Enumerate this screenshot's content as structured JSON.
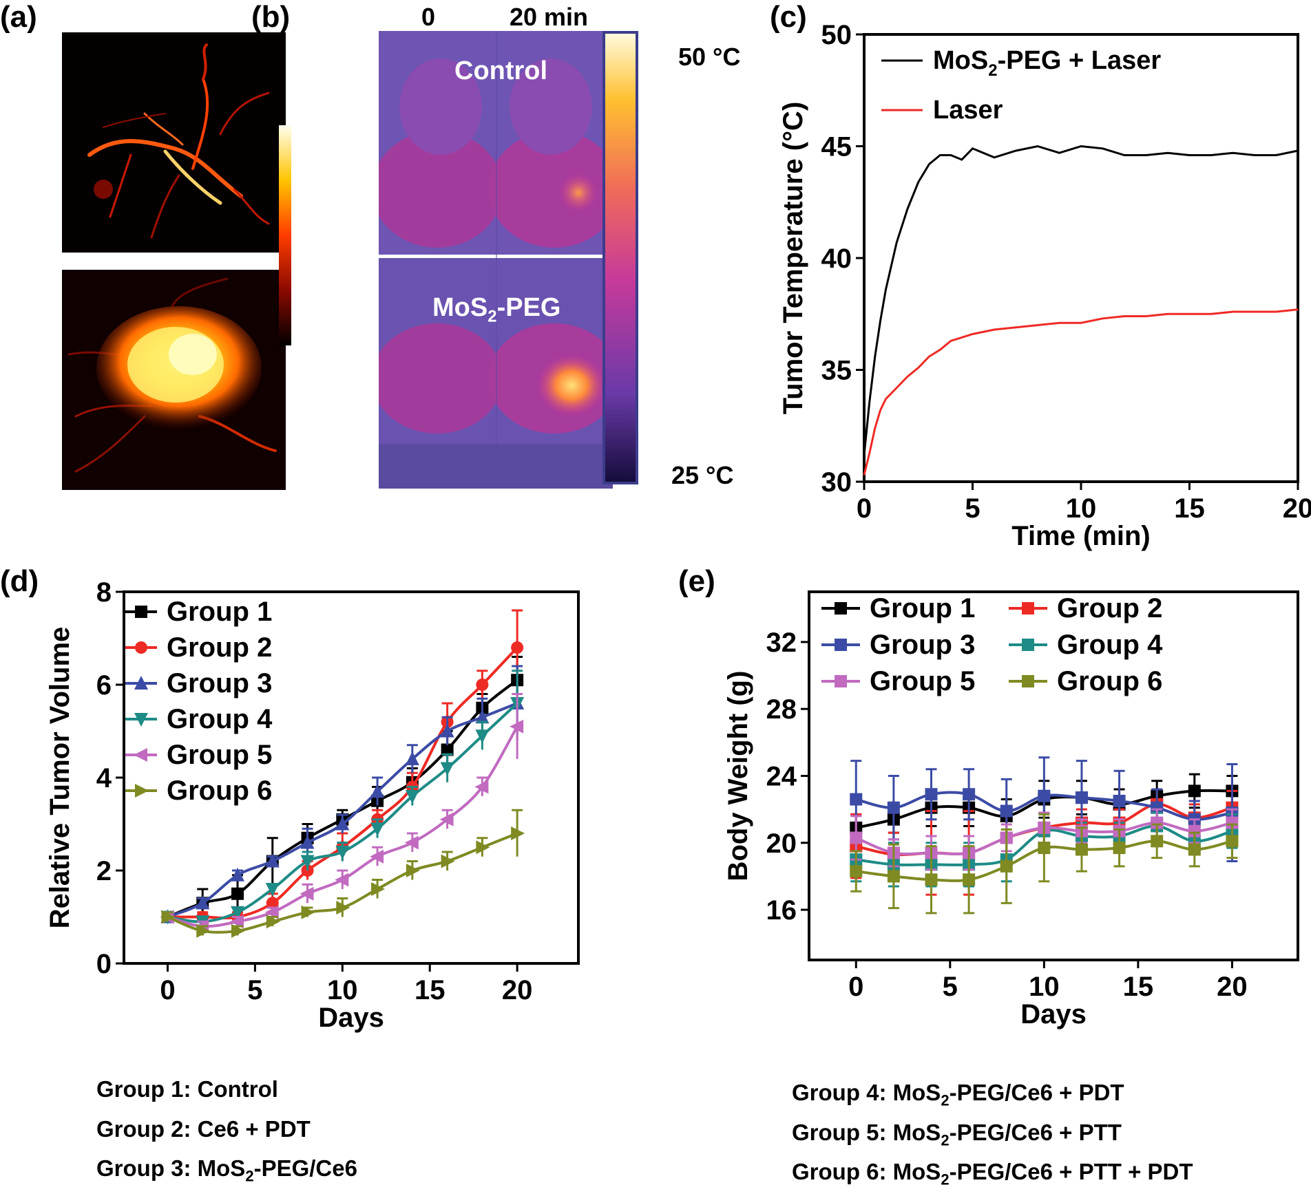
{
  "panel_labels": {
    "a": "(a)",
    "b": "(b)",
    "c": "(c)",
    "d": "(d)",
    "e": "(e)"
  },
  "panel_b": {
    "time_start": "0",
    "time_end": "20 min",
    "row1_label": "Control",
    "row2_label_main": "MoS",
    "row2_label_sub": "2",
    "row2_label_tail": "-PEG",
    "scale_max": "50 °C",
    "scale_min": "25 °C"
  },
  "colors": {
    "g1": "#000000",
    "g2": "#ee2a24",
    "g3": "#3b4ba5",
    "g4": "#1e8b86",
    "g5": "#c16ac0",
    "g6": "#7f8a22"
  },
  "chart_data": [
    {
      "id": "c",
      "type": "line",
      "xlabel": "Time (min)",
      "ylabel": "Tumor Temperature (°C)",
      "xlim": [
        0,
        20
      ],
      "ylim": [
        30,
        50
      ],
      "xticks": [
        0,
        5,
        10,
        15,
        20
      ],
      "yticks": [
        30,
        35,
        40,
        45,
        50
      ],
      "legend_placement": "top-left",
      "series": [
        {
          "name": "MoS2-PEG + Laser",
          "color": "#000000",
          "x": [
            0,
            0.25,
            0.5,
            0.75,
            1,
            1.5,
            2,
            2.5,
            3,
            3.5,
            4,
            4.5,
            5,
            6,
            7,
            8,
            9,
            10,
            11,
            12,
            13,
            14,
            15,
            16,
            17,
            18,
            19,
            20
          ],
          "y": [
            31.2,
            33.6,
            35.6,
            37.2,
            38.6,
            40.7,
            42.2,
            43.4,
            44.2,
            44.6,
            44.6,
            44.4,
            44.9,
            44.5,
            44.8,
            45.0,
            44.7,
            45.0,
            44.9,
            44.6,
            44.6,
            44.7,
            44.6,
            44.6,
            44.7,
            44.6,
            44.6,
            44.8
          ]
        },
        {
          "name": "Laser",
          "color": "#ee2a24",
          "x": [
            0,
            0.25,
            0.5,
            0.75,
            1,
            1.5,
            2,
            2.5,
            3,
            3.5,
            4,
            5,
            6,
            7,
            8,
            9,
            10,
            11,
            12,
            13,
            14,
            15,
            16,
            17,
            18,
            19,
            20
          ],
          "y": [
            30.3,
            31.3,
            32.4,
            33.2,
            33.7,
            34.2,
            34.7,
            35.1,
            35.6,
            35.9,
            36.3,
            36.6,
            36.8,
            36.9,
            37.0,
            37.1,
            37.1,
            37.3,
            37.4,
            37.4,
            37.5,
            37.5,
            37.5,
            37.6,
            37.6,
            37.6,
            37.7
          ]
        }
      ]
    },
    {
      "id": "d",
      "type": "line",
      "xlabel": "Days",
      "ylabel": "Relative Tumor Volume",
      "xlim": [
        -2.5,
        23.5
      ],
      "ylim": [
        0,
        8
      ],
      "xticks": [
        0,
        5,
        10,
        15,
        20
      ],
      "yticks": [
        0,
        2,
        4,
        6,
        8
      ],
      "legend_placement": "top-left",
      "x": [
        0,
        2,
        4,
        6,
        8,
        10,
        12,
        14,
        16,
        18,
        20
      ],
      "series": [
        {
          "name": "Group 1",
          "key": "g1",
          "marker": "square",
          "values": [
            1.0,
            1.3,
            1.5,
            2.2,
            2.7,
            3.1,
            3.5,
            3.9,
            4.6,
            5.5,
            6.1
          ],
          "errors": [
            0.1,
            0.3,
            0.4,
            0.5,
            0.3,
            0.2,
            0.3,
            0.3,
            0.4,
            0.3,
            0.5
          ]
        },
        {
          "name": "Group 2",
          "key": "g2",
          "marker": "circle",
          "values": [
            1.0,
            1.0,
            1.0,
            1.3,
            2.0,
            2.5,
            3.1,
            3.8,
            5.2,
            6.0,
            6.8
          ],
          "errors": [
            0.1,
            0.1,
            0.1,
            0.2,
            0.2,
            0.3,
            0.2,
            0.3,
            0.4,
            0.3,
            0.8
          ]
        },
        {
          "name": "Group 3",
          "key": "g3",
          "marker": "triangle-up",
          "values": [
            1.0,
            1.3,
            1.9,
            2.2,
            2.6,
            3.0,
            3.7,
            4.4,
            5.0,
            5.3,
            5.6
          ],
          "errors": [
            0.1,
            0.1,
            0.1,
            0.1,
            0.3,
            0.2,
            0.3,
            0.3,
            0.3,
            0.4,
            0.8
          ]
        },
        {
          "name": "Group 4",
          "key": "g4",
          "marker": "triangle-down",
          "values": [
            1.0,
            0.9,
            1.1,
            1.6,
            2.2,
            2.4,
            2.9,
            3.6,
            4.2,
            4.9,
            5.6
          ],
          "errors": [
            0.1,
            0.1,
            0.1,
            0.1,
            0.2,
            0.2,
            0.2,
            0.2,
            0.3,
            0.3,
            0.7
          ]
        },
        {
          "name": "Group 5",
          "key": "g5",
          "marker": "triangle-left",
          "values": [
            1.0,
            0.8,
            0.9,
            1.1,
            1.5,
            1.8,
            2.3,
            2.6,
            3.1,
            3.8,
            5.1
          ],
          "errors": [
            0.1,
            0.1,
            0.1,
            0.1,
            0.2,
            0.2,
            0.2,
            0.2,
            0.2,
            0.2,
            0.7
          ]
        },
        {
          "name": "Group 6",
          "key": "g6",
          "marker": "triangle-right",
          "values": [
            1.0,
            0.7,
            0.7,
            0.9,
            1.1,
            1.2,
            1.6,
            2.0,
            2.2,
            2.5,
            2.8
          ],
          "errors": [
            0.1,
            0.1,
            0.1,
            0.1,
            0.1,
            0.2,
            0.2,
            0.2,
            0.2,
            0.2,
            0.5
          ]
        }
      ]
    },
    {
      "id": "e",
      "type": "line",
      "xlabel": "Days",
      "ylabel": "Body Weight (g)",
      "xlim": [
        -2.5,
        23.5
      ],
      "ylim": [
        13,
        35
      ],
      "xticks": [
        0,
        5,
        10,
        15,
        20
      ],
      "yticks": [
        16,
        20,
        24,
        28,
        32
      ],
      "legend_placement": "top",
      "x": [
        0,
        2,
        4,
        6,
        8,
        10,
        12,
        14,
        16,
        18,
        20
      ],
      "series": [
        {
          "name": "Group 1",
          "key": "g1",
          "values": [
            20.9,
            21.4,
            22.1,
            22.1,
            21.6,
            22.6,
            22.7,
            22.3,
            22.8,
            23.1,
            23.1
          ],
          "errors": [
            0.8,
            0.8,
            1.1,
            1.1,
            1.0,
            1.1,
            1.0,
            0.9,
            0.9,
            1.0,
            0.9
          ]
        },
        {
          "name": "Group 2",
          "key": "g2",
          "values": [
            19.8,
            19.3,
            19.4,
            19.4,
            20.3,
            20.9,
            21.2,
            21.2,
            22.3,
            21.5,
            22.1
          ],
          "errors": [
            1.9,
            1.3,
            2.5,
            2.5,
            1.3,
            0.9,
            0.8,
            0.8,
            0.9,
            0.8,
            1.0
          ]
        },
        {
          "name": "Group 3",
          "key": "g3",
          "values": [
            22.6,
            22.1,
            22.9,
            22.9,
            21.9,
            22.8,
            22.7,
            22.5,
            22.1,
            21.4,
            21.8
          ],
          "errors": [
            2.3,
            1.9,
            1.5,
            1.5,
            1.9,
            2.3,
            2.2,
            1.8,
            1.1,
            1.1,
            2.9
          ]
        },
        {
          "name": "Group 4",
          "key": "g4",
          "values": [
            19.0,
            18.7,
            18.7,
            18.7,
            19.0,
            20.7,
            20.4,
            20.4,
            21.0,
            20.1,
            20.7
          ],
          "errors": [
            1.3,
            1.3,
            1.3,
            1.3,
            1.3,
            1.0,
            0.8,
            0.8,
            0.8,
            0.8,
            1.0
          ]
        },
        {
          "name": "Group 5",
          "key": "g5",
          "values": [
            20.3,
            19.4,
            19.4,
            19.4,
            20.3,
            20.9,
            20.7,
            20.7,
            21.2,
            20.7,
            21.2
          ],
          "errors": [
            1.3,
            0.8,
            1.0,
            1.0,
            0.8,
            0.9,
            0.7,
            0.7,
            0.8,
            0.7,
            0.8
          ]
        },
        {
          "name": "Group 6",
          "key": "g6",
          "values": [
            18.3,
            18.0,
            17.8,
            17.8,
            18.6,
            19.7,
            19.6,
            19.7,
            20.1,
            19.6,
            20.1
          ],
          "errors": [
            1.2,
            1.9,
            2.0,
            2.0,
            2.2,
            2.0,
            1.3,
            1.1,
            1.0,
            1.0,
            1.0
          ]
        }
      ]
    }
  ],
  "captions": {
    "left": [
      {
        "main": "Group 1: Control",
        "sub": "",
        "tail": ""
      },
      {
        "main": "Group 2: Ce6 + PDT",
        "sub": "",
        "tail": ""
      },
      {
        "main": "Group 3: MoS",
        "sub": "2",
        "tail": "-PEG/Ce6"
      }
    ],
    "right": [
      {
        "main": "Group 4: MoS",
        "sub": "2",
        "tail": "-PEG/Ce6 + PDT"
      },
      {
        "main": "Group 5: MoS",
        "sub": "2",
        "tail": "-PEG/Ce6 + PTT"
      },
      {
        "main": "Group 6: MoS",
        "sub": "2",
        "tail": "-PEG/Ce6 + PTT + PDT"
      }
    ]
  }
}
